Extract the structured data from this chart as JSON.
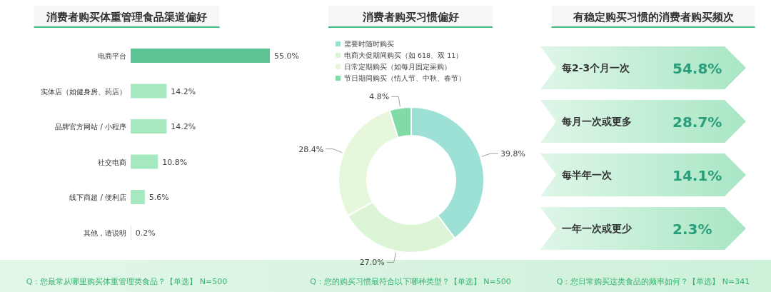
{
  "chart_data": [
    {
      "type": "bar",
      "orientation": "horizontal",
      "title": "消费者购买体重管理食品渠道偏好",
      "categories": [
        "电商平台",
        "实体店（如健身房、药店）",
        "品牌官方网站 / 小程序",
        "社交电商",
        "线下商超 / 便利店",
        "其他，请说明"
      ],
      "values": [
        55.0,
        14.2,
        14.2,
        10.8,
        5.6,
        0.2
      ],
      "colors": [
        "#5cc395",
        "#a6e8c0",
        "#a6e8c0",
        "#a6e8c0",
        "#a6e8c0",
        "#a6e8c0"
      ],
      "data_labels": true,
      "value_labels": [
        "55.0%",
        "14.2%",
        "14.2%",
        "10.8%",
        "5.6%",
        "0.2%"
      ],
      "annotations": [
        "Q：您最常从哪里购买体重管理类食品？【单选】 N=500"
      ]
    },
    {
      "type": "donut",
      "title": "消费者购买习惯偏好",
      "categories": [
        "需要时随时购买",
        "电商大促期间购买（如 618、双 11）",
        "日常定期购买（如每月固定采购）",
        "节日期间购买（情人节、中秋、春节）"
      ],
      "values": [
        39.8,
        27.0,
        28.4,
        4.8
      ],
      "colors": [
        "#9ce0d6",
        "#dcf5d6",
        "#e6f7dc",
        "#80dca4"
      ],
      "value_labels": [
        "39.8%",
        "27.0%",
        "28.4%",
        "4.8%"
      ],
      "legend": "top left",
      "annotations": [
        "Q：您的购买习惯最符合以下哪种类型？【单选】 N=500"
      ]
    },
    {
      "type": "other",
      "title": "有稳定购买习惯的消费者购买频次",
      "categories": [
        "每2-3个月一次",
        "每月一次或更多",
        "每半年一次",
        "一年一次或更少"
      ],
      "values": [
        54.8,
        28.7,
        14.1,
        2.3
      ],
      "value_labels": [
        "54.8%",
        "28.7%",
        "14.1%",
        "2.3%"
      ],
      "annotations": [
        "Q：您日常购买这类食品的频率如何？【单选】 N=341"
      ]
    }
  ]
}
